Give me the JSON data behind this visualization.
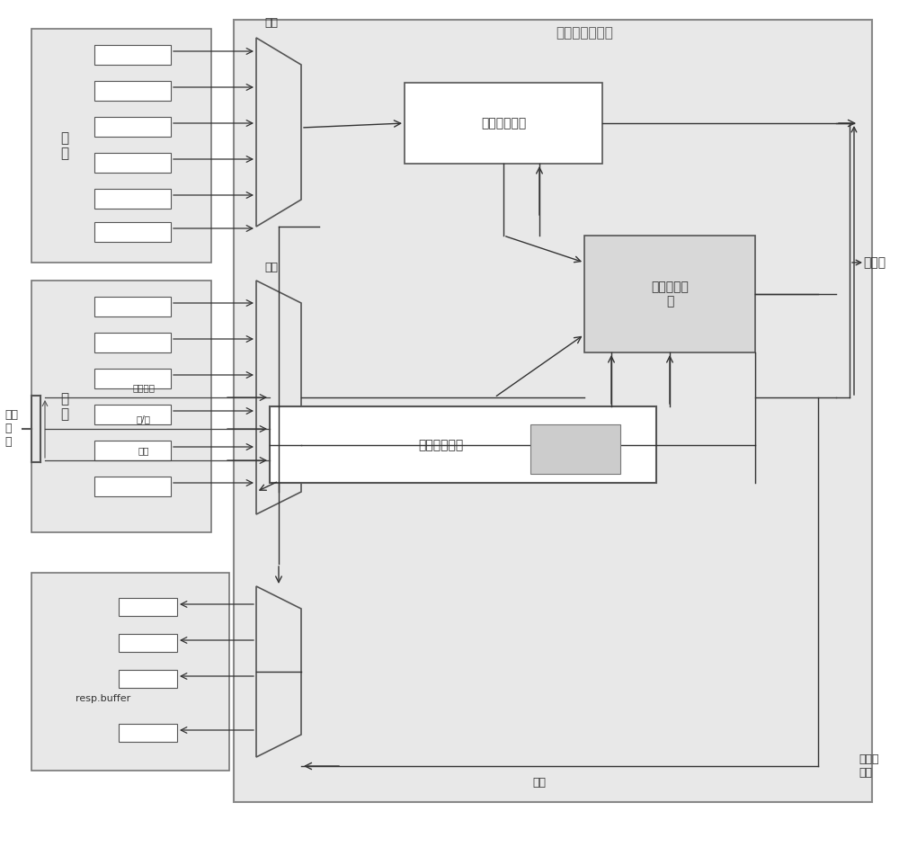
{
  "bg_color": "#e8e8e8",
  "white": "#ffffff",
  "light_gray": "#d8d8d8",
  "dark_gray": "#555555",
  "box_edge": "#666666",
  "arrow_color": "#333333",
  "title_core": "核心存储控制器",
  "label_addr": "地址",
  "label_data": "数据",
  "label_addr_map": "地址映射模块",
  "label_cmd_gen": "命令生成模\n块",
  "label_scheduler": "改进的调度器",
  "label_to_mem": "到内存",
  "label_from_mem": "从内存\n取出",
  "label_all_req": "所有\n请\n求",
  "label_hang_req": "挂起请求",
  "label_rw": "读/写",
  "label_idle": "空闲",
  "label_resp_buffer": "resp.buffer",
  "label_data_bottom": "数据",
  "label_dizhi": "地\n址",
  "label_shuju": "数\n据"
}
